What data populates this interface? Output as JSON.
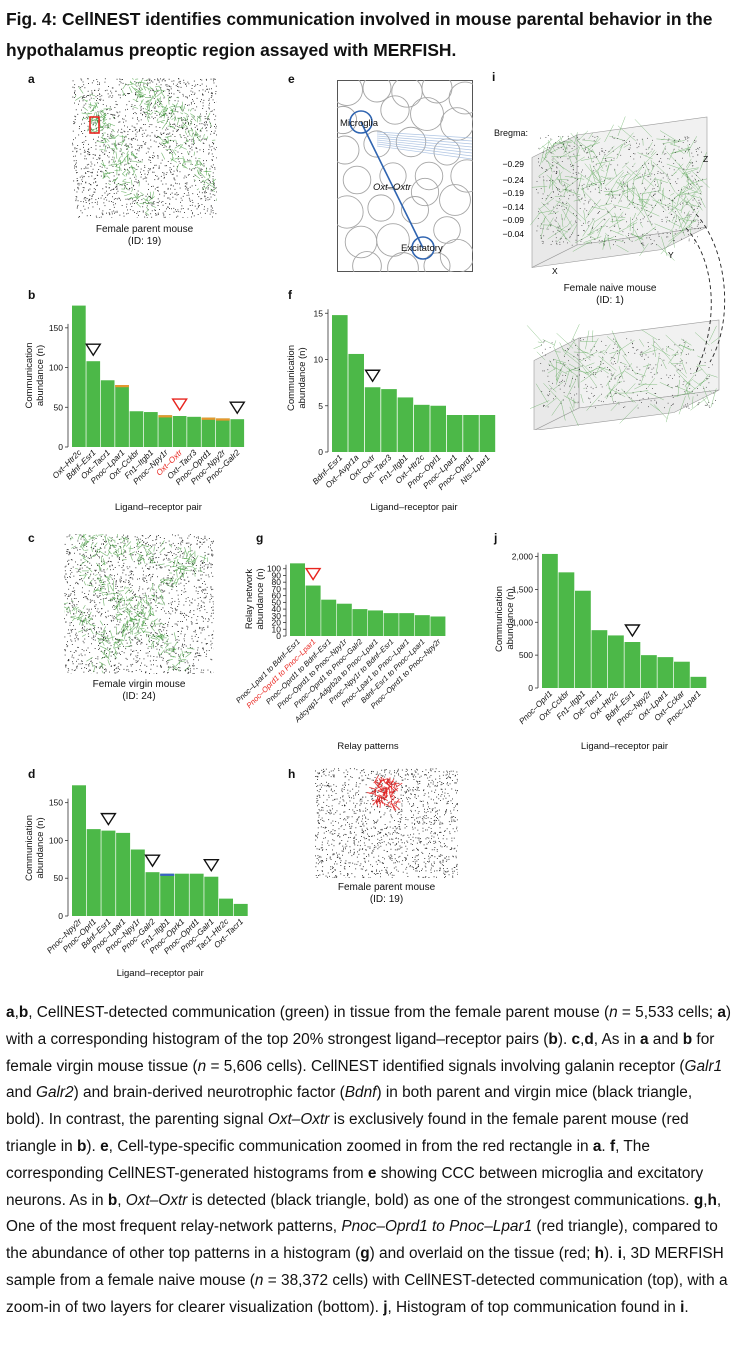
{
  "title": "Fig. 4: CellNEST identifies communication involved in mouse parental behavior in the hypothalamus preoptic region assayed with MERFISH.",
  "panel_letters": {
    "a": "a",
    "b": "b",
    "c": "c",
    "d": "d",
    "e": "e",
    "f": "f",
    "g": "g",
    "h": "h",
    "i": "i",
    "j": "j"
  },
  "panel_a": {
    "caption_line1": "Female parent mouse",
    "caption_line2": "(ID: 19)"
  },
  "panel_c": {
    "caption_line1": "Female virgin mouse",
    "caption_line2": "(ID: 24)"
  },
  "panel_h": {
    "caption_line1": "Female parent mouse",
    "caption_line2": "(ID: 19)"
  },
  "panel_e": {
    "label_microglia": "Microglia",
    "label_lr": "Oxt–Oxtr",
    "label_excitatory": "Excitatory"
  },
  "panel_i": {
    "bregma_label": "Bregma:",
    "bregma_ticks": [
      "−0.29",
      "−0.24",
      "−0.19",
      "−0.14",
      "−0.09",
      "−0.04"
    ],
    "axis_x": "X",
    "axis_y": "Y",
    "axis_z": "Z",
    "caption_line1": "Female naive mouse",
    "caption_line2": "(ID: 1)"
  },
  "colors": {
    "bar": "#4cb848",
    "orange": "#e8972e",
    "blue": "#3a63c4",
    "red_label": "#e8251f",
    "red_triangle": "#e8251f",
    "dots": "#222222",
    "green_net": "#3f9b3a"
  },
  "chart_data": [
    {
      "panel": "b",
      "type": "bar",
      "ylabel": "Communication\nabundance (n)",
      "xlabel": "Ligand–receptor pair",
      "ylim": [
        0,
        180
      ],
      "yticks": [
        0,
        50,
        100,
        150
      ],
      "categories": [
        "Oxt–Htr2c",
        "Bdnf–Esr1",
        "Oxt–Tacr1",
        "Pnoc–Lpar1",
        "Oxt–Cckbr",
        "Fn1–Itgb1",
        "Pnoc–Npy1r",
        "Oxt–Oxtr",
        "Oxt–Tacr3",
        "Pnoc–Oprd1",
        "Pnoc–Npy2r",
        "Pnoc–Galr2"
      ],
      "values": [
        178,
        108,
        84,
        78,
        45,
        44,
        40,
        39,
        38,
        37,
        36,
        35
      ],
      "overlay": [
        {
          "index": 3,
          "color": "orange"
        },
        {
          "index": 6,
          "color": "orange"
        },
        {
          "index": 9,
          "color": "orange"
        },
        {
          "index": 10,
          "color": "orange"
        }
      ],
      "highlight_red_labels": [
        7
      ],
      "black_triangles": [
        1,
        11
      ],
      "red_triangles": [
        7
      ]
    },
    {
      "panel": "f",
      "type": "bar",
      "ylabel": "Communication\nabundance (n)",
      "xlabel": "Ligand–receptor pair",
      "ylim": [
        0,
        16
      ],
      "yticks": [
        0,
        5,
        10,
        15
      ],
      "categories": [
        "Bdnf–Esr1",
        "Oxt–Avpr1a",
        "Oxt–Oxtr",
        "Oxt–Tacr3",
        "Fn1–Itgb1",
        "Oxt–Htr2c",
        "Pnoc–Oprl1",
        "Pnoc–Lpar1",
        "Pnoc–Oprd1",
        "Nts–Lpar1"
      ],
      "values": [
        14.8,
        10.6,
        7,
        6.8,
        5.9,
        5.1,
        5,
        4,
        4,
        4
      ],
      "black_triangles": [
        2
      ],
      "red_triangles": []
    },
    {
      "panel": "g",
      "type": "bar",
      "ylabel": "Relay network\nabundance (n)",
      "xlabel": "Relay patterns",
      "ylim": [
        0,
        110
      ],
      "yticks": [
        0,
        10,
        20,
        30,
        40,
        50,
        60,
        70,
        80,
        90,
        100
      ],
      "categories": [
        "Pnoc–Lpar1 to Bdnf–Esr1",
        "Pnoc–Oprd1 to Pnoc–Lpar1",
        "Pnoc–Oprd1 to Bdnf–Esr1",
        "Pnoc–Oprd1 to Pnoc–Npy1r",
        "Pnoc–Oprd1 to Pnoc–Galr2",
        "Adcyap1–Adgrb2a to Pnoc–Lpar1",
        "Pnoc–Npy1r to Bdnf–Esr1",
        "Pnoc–Lpar1 to Pnoc–Lpar1",
        "Bdnf–Esr1 to Pnoc–Lpar1",
        "Pnoc–Oprd1 to Pnoc–Npy2r"
      ],
      "values": [
        108,
        75,
        54,
        48,
        40,
        38,
        34,
        34,
        31,
        29
      ],
      "highlight_red_labels": [
        1
      ],
      "black_triangles": [],
      "red_triangles": [
        1
      ]
    },
    {
      "panel": "j",
      "type": "bar",
      "ylabel": "Communication\nabundance (n)",
      "xlabel": "Ligand–receptor pair",
      "ylim": [
        0,
        2100
      ],
      "yticks": [
        "0",
        "500",
        "1,000",
        "1,500",
        "2,000"
      ],
      "ytick_values": [
        0,
        500,
        1000,
        1500,
        2000
      ],
      "categories": [
        "Pnoc–Oprl1",
        "Oxt–Cckbr",
        "Fn1–Itgb1",
        "Oxt–Tacr1",
        "Oxt–Htr2c",
        "Bdnf–Esr1",
        "Pnoc–Npy2r",
        "Oxt–Lpar1",
        "Oxt–Cckar",
        "Pnoc–Lpar1"
      ],
      "values": [
        2040,
        1760,
        1480,
        880,
        800,
        700,
        500,
        470,
        400,
        170
      ],
      "black_triangles": [
        5
      ],
      "red_triangles": []
    },
    {
      "panel": "d",
      "type": "bar",
      "ylabel": "Communication\nabundance (n)",
      "xlabel": "Ligand–receptor pair",
      "ylim": [
        0,
        180
      ],
      "yticks": [
        0,
        50,
        100,
        150
      ],
      "categories": [
        "Pnoc–Npy2r",
        "Pnoc–Oprl1",
        "Bdnf–Esr1",
        "Pnoc–Lpar1",
        "Pnoc–Npy1r",
        "Pnoc–Galr2",
        "Fn1–Itgb1",
        "Pnoc–Oprk1",
        "Pnoc–Oprd1",
        "Pnoc–Galr1",
        "Tac1–Htr2c",
        "Oxt–Tacr1"
      ],
      "values": [
        173,
        115,
        113,
        110,
        88,
        58,
        56,
        56,
        56,
        52,
        23,
        16
      ],
      "overlay": [
        {
          "index": 6,
          "color": "blue"
        }
      ],
      "black_triangles": [
        2,
        5,
        9
      ],
      "red_triangles": []
    }
  ],
  "legend": {
    "t01": "a",
    "t02": ",",
    "t03": "b",
    "t04": ", CellNEST-detected communication (green) in tissue from the female parent mouse (",
    "t05": "n",
    "t06": " = 5,533 cells; ",
    "t07": "a",
    "t08": ") with a corresponding histogram of the top 20% strongest ligand–receptor pairs (",
    "t09": "b",
    "t10": "). ",
    "t11": "c",
    "t12": ",",
    "t13": "d",
    "t14": ", As in ",
    "t15": "a",
    "t16": " and ",
    "t17": "b",
    "t18": " for female virgin mouse tissue (",
    "t19": "n",
    "t20": " = 5,606 cells). CellNEST identified signals involving galanin receptor (",
    "t21": "Galr1",
    "t22": " and ",
    "t23": "Galr2",
    "t24": ") and brain-derived neurotrophic factor (",
    "t25": "Bdnf",
    "t26": ") in both parent and virgin mice (black triangle, bold). In contrast, the parenting signal ",
    "t27": "Oxt–Oxtr",
    "t28": " is exclusively found in the female parent mouse (red triangle in ",
    "t29": "b",
    "t30": "). ",
    "t31": "e",
    "t32": ", Cell-type-specific communication zoomed in from the red rectangle in ",
    "t33": "a",
    "t34": ". ",
    "t35": "f",
    "t36": ", The corresponding CellNEST-generated histograms from ",
    "t37": "e",
    "t38": " showing CCC between microglia and excitatory neurons. As in ",
    "t39": "b",
    "t40": ", ",
    "t41": "Oxt–Oxtr",
    "t42": " is detected (black triangle, bold) as one of the strongest communications. ",
    "t43": "g",
    "t44": ",",
    "t45": "h",
    "t46": ", One of the most frequent relay-network patterns, ",
    "t47": "Pnoc–Oprd1 to Pnoc–Lpar1",
    "t48": " (red triangle), compared to the abundance of other top patterns in a histogram (",
    "t49": "g",
    "t50": ") and overlaid on the tissue (red; ",
    "t51": "h",
    "t52": "). ",
    "t53": "i",
    "t54": ", 3D MERFISH sample from a female naive mouse (",
    "t55": "n",
    "t56": " = 38,372 cells) with CellNEST-detected communication (top), with a zoom-in of two layers for clearer visualization (bottom). ",
    "t57": "j",
    "t58": ", Histogram of top communication found in ",
    "t59": "i",
    "t60": "."
  }
}
